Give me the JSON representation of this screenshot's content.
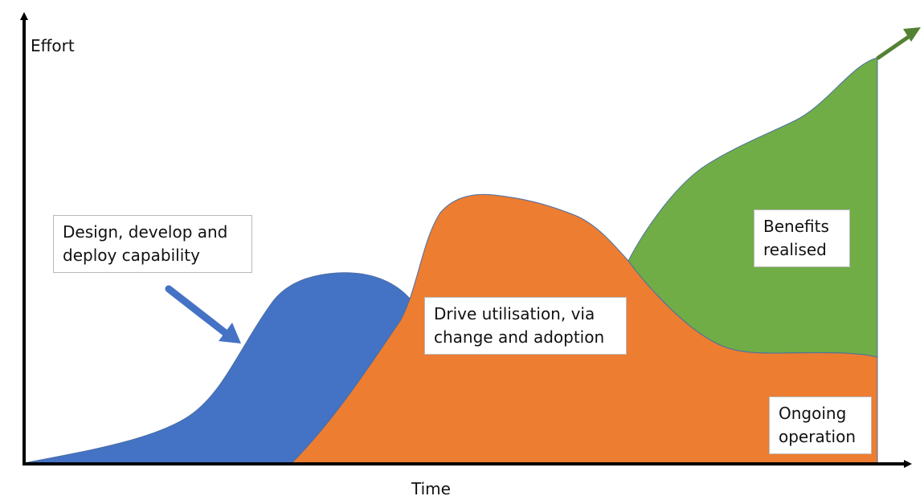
{
  "axes": {
    "y_label": "Effort",
    "x_label": "Time"
  },
  "stages": [
    {
      "id": "design",
      "text": "Design, develop and deploy capability",
      "color": "#4472c4"
    },
    {
      "id": "drive",
      "text": "Drive utilisation, via change and adoption",
      "color": "#ed7d31"
    },
    {
      "id": "benefits",
      "text": "Benefits realised",
      "color": "#70ad47"
    },
    {
      "id": "ongoing",
      "text": "Ongoing operation",
      "color": "#ed7d31"
    }
  ],
  "colors": {
    "axis": "#000000",
    "pointer_arrow": "#4472c4",
    "growth_arrow": "#548235",
    "outline": "#4a6fa5"
  }
}
